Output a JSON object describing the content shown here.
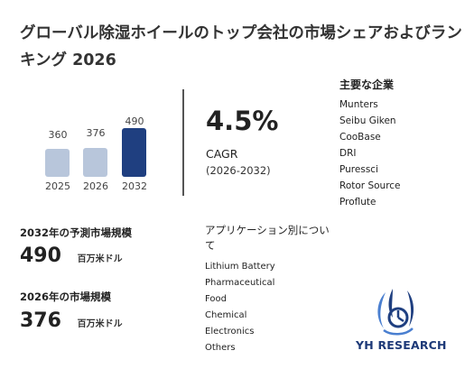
{
  "title": "グローバル除湿ホイールのトップ会社の市場シェアおよびランキング 2026",
  "chart_data": {
    "type": "bar",
    "categories": [
      "2025",
      "2026",
      "2032"
    ],
    "values": [
      360,
      376,
      490
    ],
    "colors": [
      "#b8c6db",
      "#b8c6db",
      "#1f3f80"
    ]
  },
  "cagr": {
    "value": "4.5%",
    "label": "CAGR",
    "period": "(2026-2032)"
  },
  "companies": {
    "title": "主要な企業",
    "items": [
      "Munters",
      "Seibu Giken",
      "CooBase",
      "DRI",
      "Puressci",
      "Rotor Source",
      "Proflute"
    ]
  },
  "stats": {
    "forecast_label": "2032年の予測市場規模",
    "forecast_value": "490",
    "forecast_unit": "百万米ドル",
    "current_label": "2026年の市場規模",
    "current_value": "376",
    "current_unit": "百万米ドル"
  },
  "applications": {
    "title": "アプリケーション別について",
    "items": [
      "Lithium Battery",
      "Pharmaceutical",
      "Food",
      "Chemical",
      "Electronics",
      "Others"
    ]
  },
  "logo": {
    "text": "YH RESEARCH",
    "icon": "yh-research-logo-icon"
  }
}
